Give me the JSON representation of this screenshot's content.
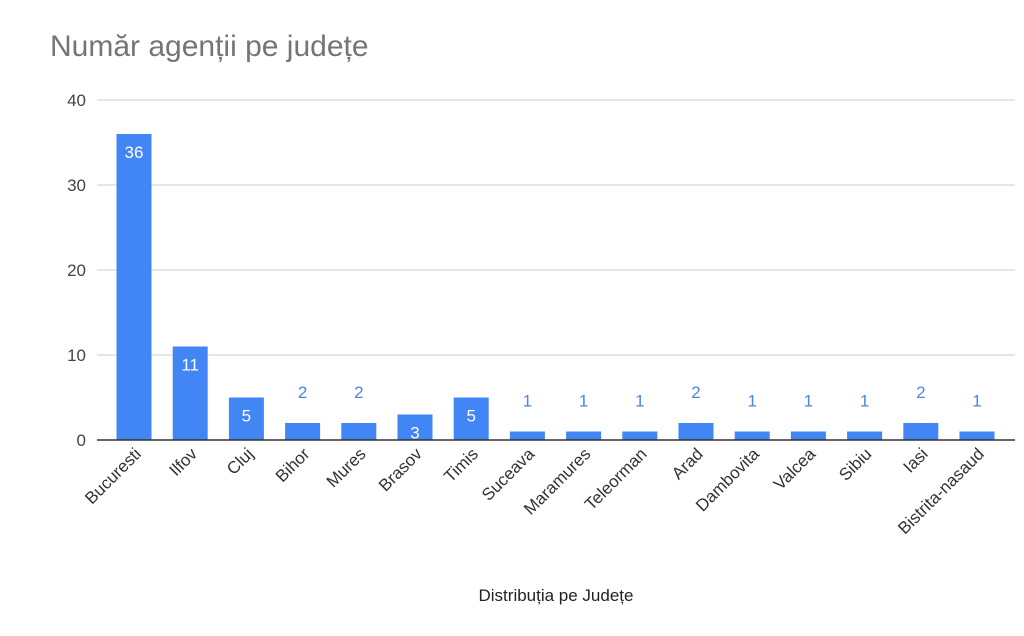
{
  "chart_data": {
    "type": "bar",
    "title": "Număr agenții pe județe",
    "xlabel": "Distribuția pe Județe",
    "ylabel": "",
    "ylim": [
      0,
      40
    ],
    "yticks": [
      0,
      10,
      20,
      30,
      40
    ],
    "grid": true,
    "legend": "none",
    "bar_color": "#4285f4",
    "categories": [
      "Bucuresti",
      "Ilfov",
      "Cluj",
      "Bihor",
      "Mures",
      "Brasov",
      "Timis",
      "Suceava",
      "Maramures",
      "Teleorman",
      "Arad",
      "Dambovita",
      "Valcea",
      "Sibiu",
      "Iasi",
      "Bistrita-nasaud"
    ],
    "values": [
      36,
      11,
      5,
      2,
      2,
      3,
      5,
      1,
      1,
      1,
      2,
      1,
      1,
      1,
      2,
      1
    ]
  }
}
